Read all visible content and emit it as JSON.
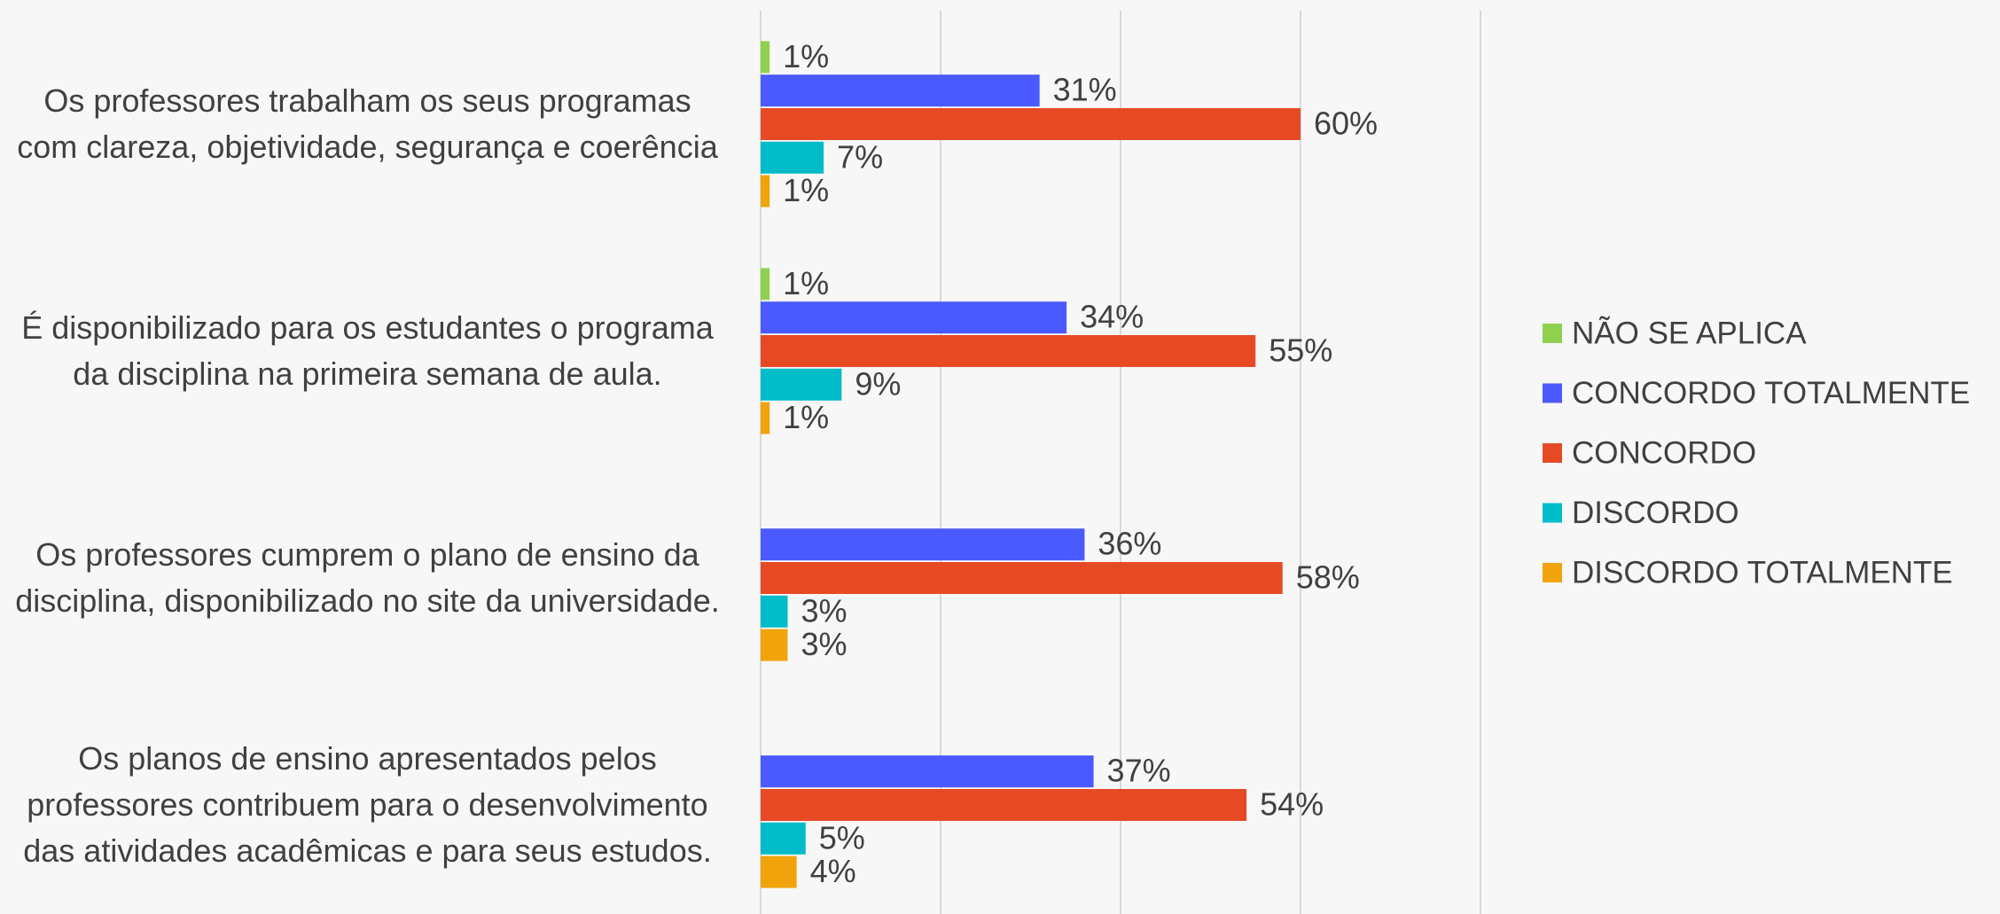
{
  "chart_data": {
    "type": "bar",
    "orientation": "horizontal",
    "categories": [
      "Os professores trabalham os seus programas com clareza, objetividade, segurança e coerência",
      "É disponibilizado para os estudantes o programa da disciplina na primeira semana de aula.",
      "Os professores cumprem o plano de ensino da disciplina, disponibilizado no site da universidade.",
      "Os planos de ensino apresentados pelos professores contribuem para o desenvolvimento das atividades acadêmicas e para seus estudos."
    ],
    "series": [
      {
        "name": "NÃO SE APLICA",
        "color": "#8fd14f",
        "values": [
          1,
          1,
          null,
          null
        ],
        "value_labels": [
          "1%",
          "1%",
          null,
          null
        ]
      },
      {
        "name": "CONCORDO TOTALMENTE",
        "color": "#4b5aff",
        "values": [
          31,
          34,
          36,
          37
        ],
        "value_labels": [
          "31%",
          "34%",
          "36%",
          "37%"
        ]
      },
      {
        "name": "CONCORDO",
        "color": "#e64a25",
        "values": [
          60,
          55,
          58,
          54
        ],
        "value_labels": [
          "60%",
          "55%",
          "58%",
          "54%"
        ]
      },
      {
        "name": "DISCORDO",
        "color": "#00bcc9",
        "values": [
          7,
          9,
          3,
          5
        ],
        "value_labels": [
          "7%",
          "9%",
          "3%",
          "5%"
        ]
      },
      {
        "name": "DISCORDO TOTALMENTE",
        "color": "#f0a30a",
        "values": [
          1,
          1,
          3,
          4
        ],
        "value_labels": [
          "1%",
          "1%",
          "3%",
          "4%"
        ]
      }
    ],
    "xlim": [
      0,
      80
    ],
    "xticks": [
      0,
      20,
      40,
      60,
      80
    ],
    "grid": true,
    "legend": "right"
  }
}
